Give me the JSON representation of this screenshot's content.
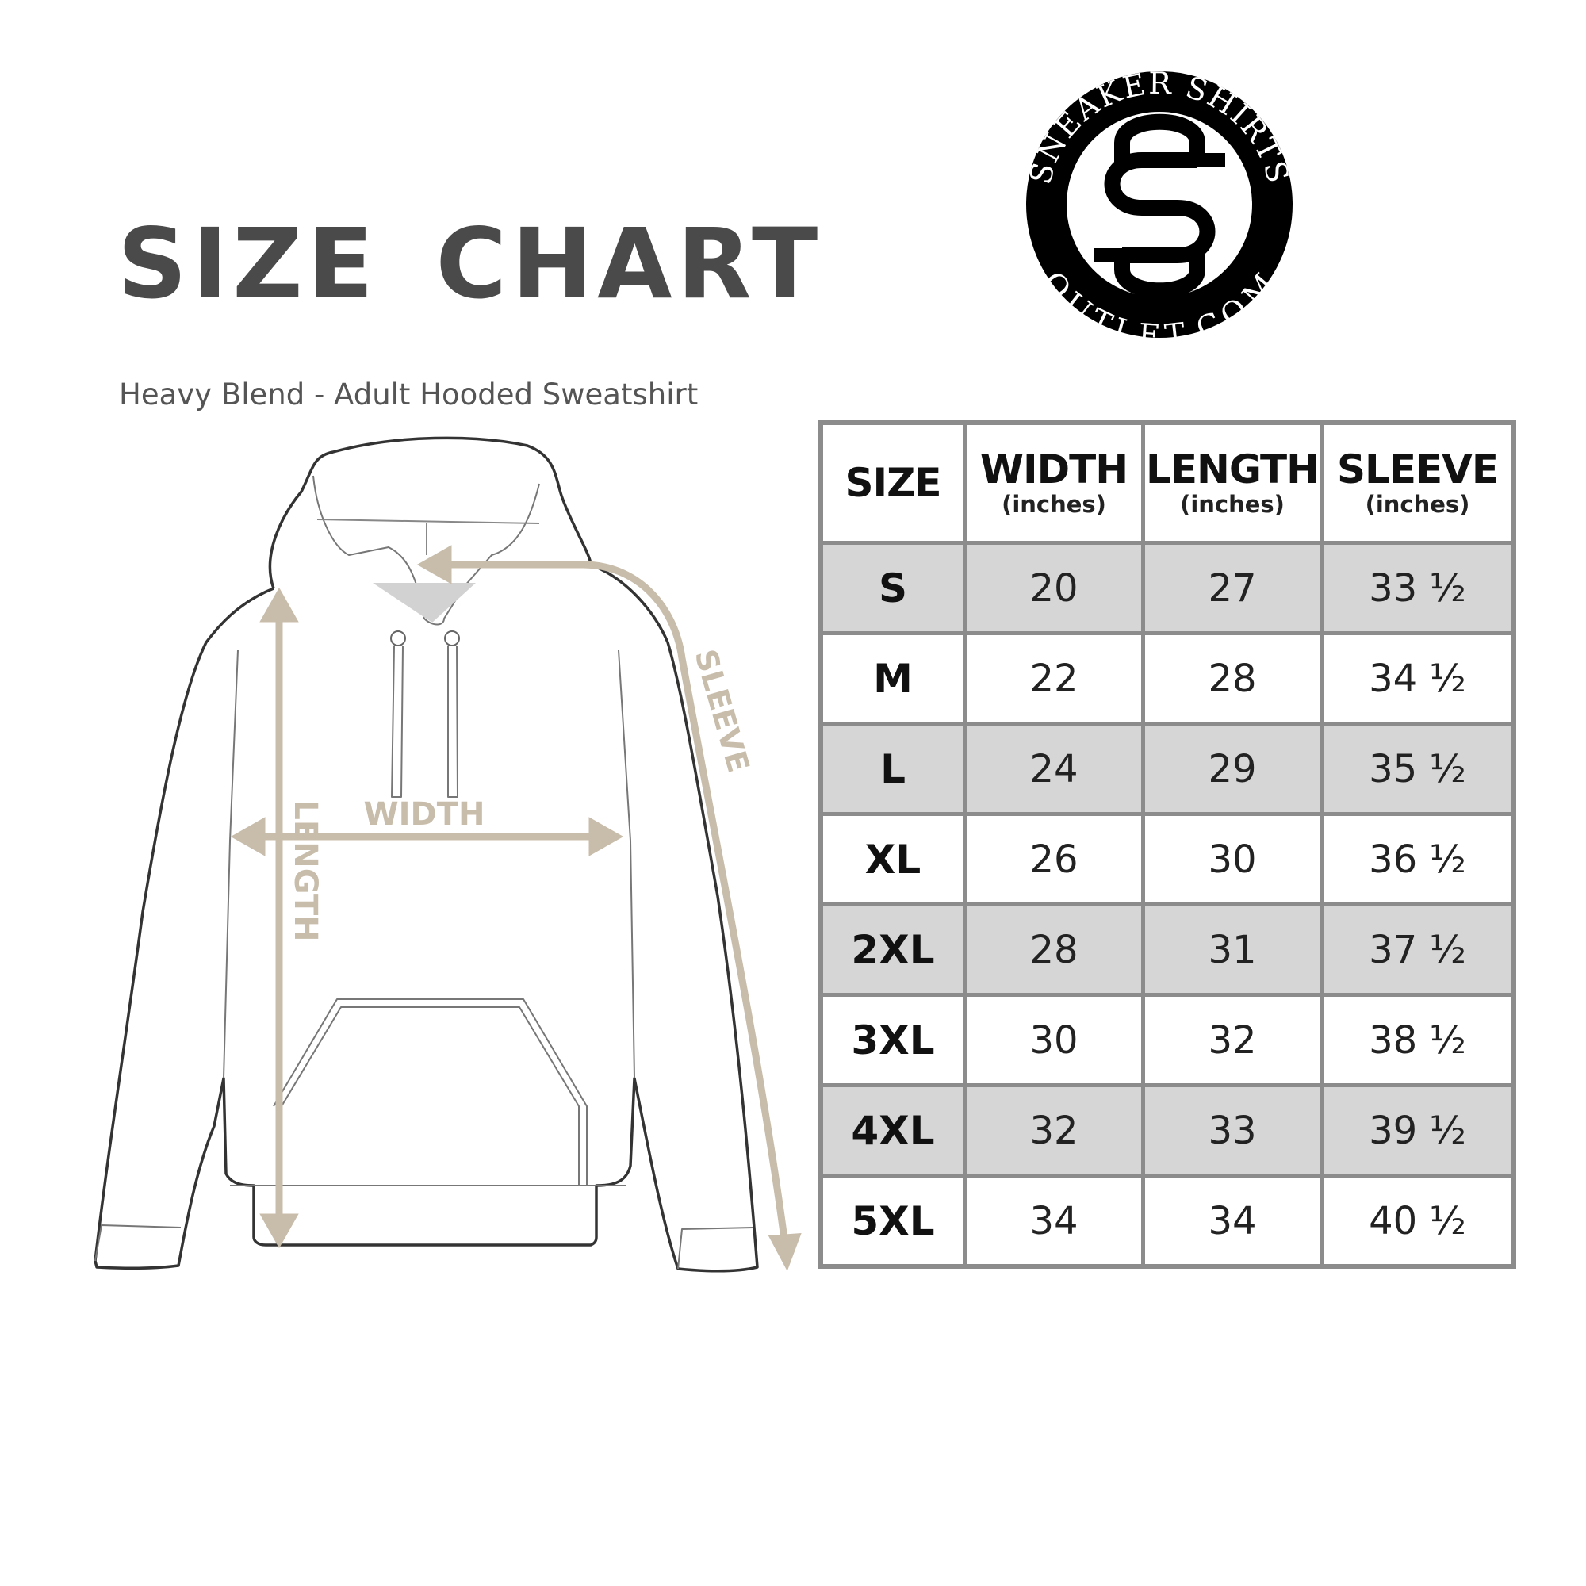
{
  "title": "SIZE CHART",
  "subtitle": "Heavy Blend - Adult Hooded Sweatshirt",
  "logo": {
    "top_text": "SNEAKER SHIRTS",
    "bottom_text": "OUTLET.COM",
    "monogram": "SS"
  },
  "diagram": {
    "labels": {
      "width": "WIDTH",
      "length": "LENGTH",
      "sleeve": "SLEEVE"
    },
    "arrow_color": "#c8bcaa"
  },
  "table": {
    "headers": [
      {
        "label": "SIZE",
        "unit": ""
      },
      {
        "label": "WIDTH",
        "unit": "(inches)"
      },
      {
        "label": "LENGTH",
        "unit": "(inches)"
      },
      {
        "label": "SLEEVE",
        "unit": "(inches)"
      }
    ],
    "rows": [
      [
        "S",
        "20",
        "27",
        "33 ½"
      ],
      [
        "M",
        "22",
        "28",
        "34 ½"
      ],
      [
        "L",
        "24",
        "29",
        "35 ½"
      ],
      [
        "XL",
        "26",
        "30",
        "36 ½"
      ],
      [
        "2XL",
        "28",
        "31",
        "37 ½"
      ],
      [
        "3XL",
        "30",
        "32",
        "38 ½"
      ],
      [
        "4XL",
        "32",
        "33",
        "39 ½"
      ],
      [
        "5XL",
        "34",
        "34",
        "40 ½"
      ]
    ]
  }
}
